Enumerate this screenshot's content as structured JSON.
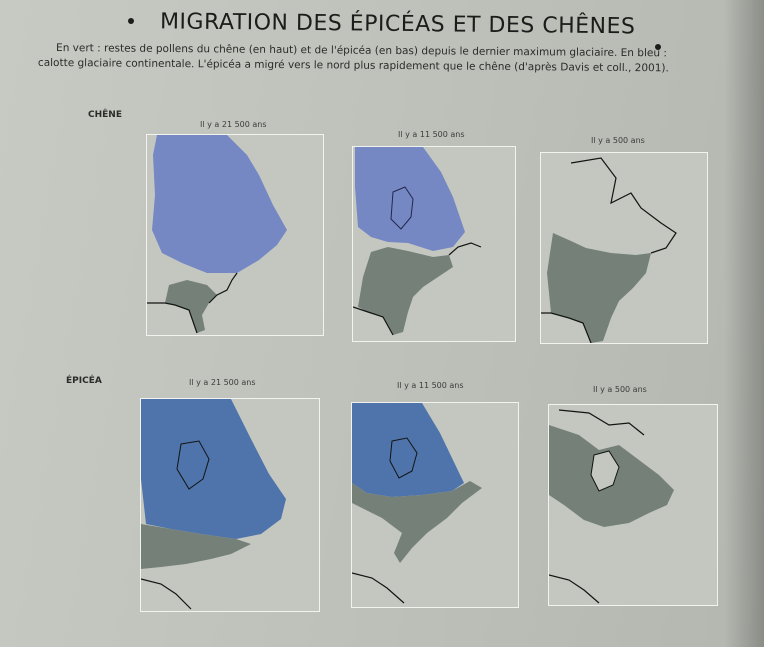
{
  "title": "MIGRATION DES ÉPICÉAS ET DES CHÊNES",
  "caption": {
    "line1": "En vert : restes de pollens du chêne (en haut) et de l'épicéa (en bas) depuis le dernier maximum glaciaire. En bleu :",
    "line2": "calotte glaciaire continentale. L'épicéa a migré vers le nord plus rapidement que le chêne (d'après Davis et coll., 2001)."
  },
  "rows": [
    {
      "label": "CHÊNE",
      "maps": [
        {
          "time": "Il y a 21 500 ans",
          "ice": "full",
          "vegetation": "southern-tip"
        },
        {
          "time": "Il y a 11 500 ans",
          "ice": "north",
          "vegetation": "southeast"
        },
        {
          "time": "Il y a 500 ans",
          "ice": "none",
          "vegetation": "east"
        }
      ]
    },
    {
      "label": "ÉPICÉA",
      "maps": [
        {
          "time": "Il y a 21 500 ans",
          "ice": "full",
          "vegetation": "southern-band"
        },
        {
          "time": "Il y a 11 500 ans",
          "ice": "north",
          "vegetation": "middle-band"
        },
        {
          "time": "Il y a 500 ans",
          "ice": "none",
          "vegetation": "boreal"
        }
      ]
    }
  ],
  "colors": {
    "ice": "#6f83c0",
    "ice_dark": "#4f74ab",
    "vegetation": "#768078",
    "outline": "#121412"
  }
}
